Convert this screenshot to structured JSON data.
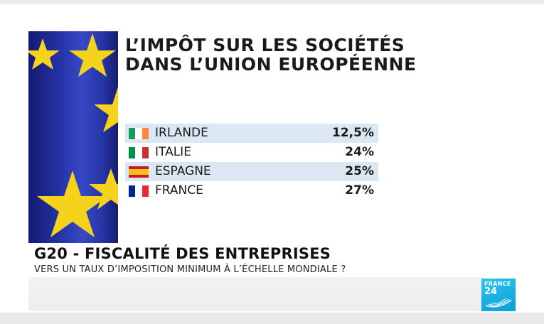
{
  "title": {
    "line1": "L’IMPÔT SUR LES SOCIÉTÉS",
    "line2": "DANS L’UNION EUROPÉENNE"
  },
  "chart_data": {
    "type": "table",
    "title": "L’IMPÔT SUR LES SOCIÉTÉS DANS L’UNION EUROPÉENNE",
    "categories": [
      "IRLANDE",
      "ITALIE",
      "ESPAGNE",
      "FRANCE"
    ],
    "values": [
      12.5,
      24,
      25,
      27
    ],
    "value_labels": [
      "12,5%",
      "24%",
      "25%",
      "27%"
    ],
    "unit": "%",
    "rows": [
      {
        "country": "IRLANDE",
        "value": "12,5%",
        "flag_icon": "ireland-flag-icon",
        "flag_colors": [
          "#169b62",
          "#ffffff",
          "#ff883e"
        ]
      },
      {
        "country": "ITALIE",
        "value": "24%",
        "flag_icon": "italy-flag-icon",
        "flag_colors": [
          "#009246",
          "#ffffff",
          "#ce2b37"
        ]
      },
      {
        "country": "ESPAGNE",
        "value": "25%",
        "flag_icon": "spain-flag-icon",
        "flag_colors": [
          "#c91a20",
          "#f6c01a",
          "#c91a20"
        ]
      },
      {
        "country": "FRANCE",
        "value": "27%",
        "flag_icon": "france-flag-icon",
        "flag_colors": [
          "#002395",
          "#ffffff",
          "#ed2939"
        ]
      }
    ],
    "row_highlight_color": "#dbe7f3",
    "grid": false
  },
  "headline": "G20 - FISCALITÉ DES ENTREPRISES",
  "subheadline": "VERS UN TAUX D’IMPOSITION MINIMUM À L’ÉCHELLE MONDIALE ?",
  "logo": {
    "line1": "FRANCE",
    "line2": "24",
    "icon": "france24-logo",
    "color": "#0ba7df"
  },
  "background_image": "eu-flag-stars-image",
  "colors": {
    "eu_blue": "#2433a6",
    "eu_gold": "#f5d21c"
  }
}
